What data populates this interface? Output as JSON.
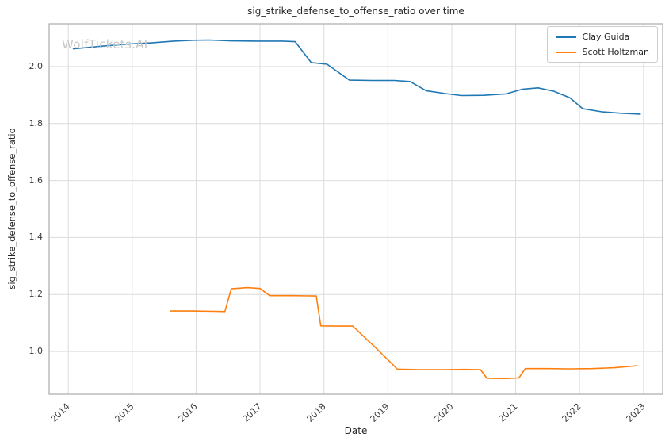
{
  "chart_data": {
    "type": "line",
    "title": "sig_strike_defense_to_offense_ratio over time",
    "xlabel": "Date",
    "ylabel": "sig_strike_defense_to_offense_ratio",
    "watermark": "WolfTickets.AI",
    "xlim": [
      2013.7,
      2023.3
    ],
    "ylim": [
      0.85,
      2.15
    ],
    "xticks": [
      2014,
      2015,
      2016,
      2017,
      2018,
      2019,
      2020,
      2021,
      2022,
      2023
    ],
    "yticks": [
      1.0,
      1.2,
      1.4,
      1.6,
      1.8,
      2.0
    ],
    "grid": true,
    "legend_position": "upper right",
    "series": [
      {
        "name": "Clay Guida",
        "color": "#1f77b4",
        "points": [
          [
            2014.08,
            2.062
          ],
          [
            2014.5,
            2.071
          ],
          [
            2014.95,
            2.079
          ],
          [
            2015.3,
            2.083
          ],
          [
            2015.65,
            2.089
          ],
          [
            2015.95,
            2.092
          ],
          [
            2016.2,
            2.093
          ],
          [
            2016.55,
            2.09
          ],
          [
            2016.95,
            2.089
          ],
          [
            2017.35,
            2.089
          ],
          [
            2017.55,
            2.087
          ],
          [
            2017.8,
            2.014
          ],
          [
            2018.05,
            2.008
          ],
          [
            2018.4,
            1.952
          ],
          [
            2018.75,
            1.951
          ],
          [
            2019.1,
            1.951
          ],
          [
            2019.35,
            1.947
          ],
          [
            2019.6,
            1.915
          ],
          [
            2019.9,
            1.905
          ],
          [
            2020.15,
            1.898
          ],
          [
            2020.5,
            1.899
          ],
          [
            2020.85,
            1.904
          ],
          [
            2021.1,
            1.92
          ],
          [
            2021.35,
            1.925
          ],
          [
            2021.6,
            1.913
          ],
          [
            2021.85,
            1.89
          ],
          [
            2022.05,
            1.852
          ],
          [
            2022.35,
            1.841
          ],
          [
            2022.65,
            1.836
          ],
          [
            2022.95,
            1.833
          ]
        ]
      },
      {
        "name": "Scott Holtzman",
        "color": "#ff7f0e",
        "points": [
          [
            2015.6,
            1.142
          ],
          [
            2015.95,
            1.142
          ],
          [
            2016.3,
            1.141
          ],
          [
            2016.45,
            1.14
          ],
          [
            2016.55,
            1.22
          ],
          [
            2016.8,
            1.224
          ],
          [
            2017.0,
            1.221
          ],
          [
            2017.15,
            1.196
          ],
          [
            2017.5,
            1.196
          ],
          [
            2017.88,
            1.195
          ],
          [
            2017.95,
            1.09
          ],
          [
            2018.2,
            1.089
          ],
          [
            2018.45,
            1.089
          ],
          [
            2018.8,
            1.015
          ],
          [
            2019.15,
            0.938
          ],
          [
            2019.5,
            0.936
          ],
          [
            2019.85,
            0.936
          ],
          [
            2020.2,
            0.937
          ],
          [
            2020.45,
            0.936
          ],
          [
            2020.55,
            0.906
          ],
          [
            2020.85,
            0.905
          ],
          [
            2021.05,
            0.907
          ],
          [
            2021.15,
            0.94
          ],
          [
            2021.5,
            0.94
          ],
          [
            2021.85,
            0.939
          ],
          [
            2022.2,
            0.94
          ],
          [
            2022.55,
            0.943
          ],
          [
            2022.9,
            0.95
          ]
        ]
      }
    ]
  },
  "colors": {
    "grid": "#dcdcdc",
    "spine": "#ababab",
    "background": "#ffffff"
  }
}
